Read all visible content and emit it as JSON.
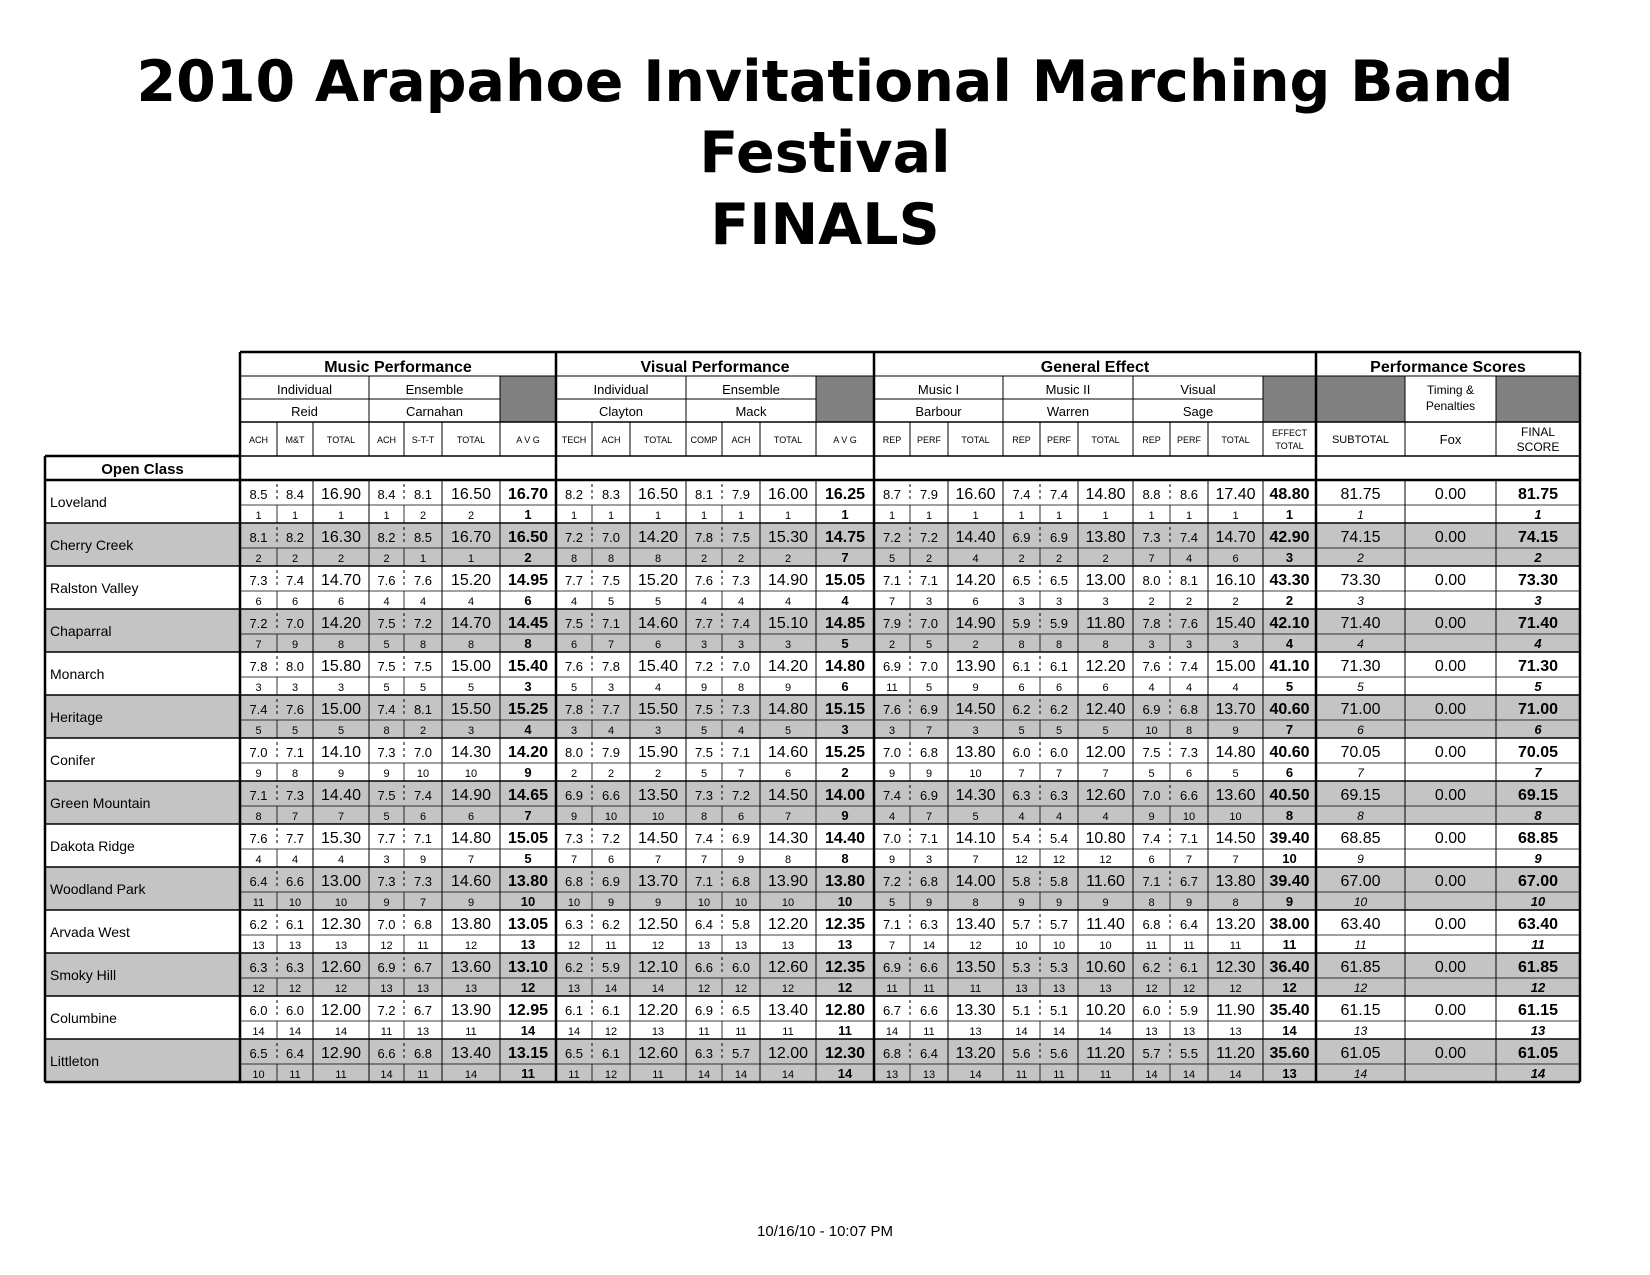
{
  "title": {
    "line1": "2010 Arapahoe Invitational Marching Band",
    "line2": "Festival",
    "line3": "FINALS"
  },
  "footer": "10/16/10 - 10:07 PM",
  "class_label": "Open Class",
  "sections": {
    "music": "Music Performance",
    "visual": "Visual Performance",
    "ge": "General Effect",
    "perf": "Performance Scores"
  },
  "captions": {
    "music_ind": "Individual",
    "music_ens": "Ensemble",
    "vis_ind": "Individual",
    "vis_ens": "Ensemble",
    "ge_music1": "Music I",
    "ge_music2": "Music II",
    "ge_visual": "Visual",
    "timing": [
      "Timing &",
      "Penalties"
    ]
  },
  "judges": {
    "music_ind": "Reid",
    "music_ens": "Carnahan",
    "vis_ind": "Clayton",
    "vis_ens": "Mack",
    "ge_music1": "Barbour",
    "ge_music2": "Warren",
    "ge_visual": "Sage",
    "timing": "Fox"
  },
  "columns": {
    "music": [
      "ACH",
      "M&T",
      "TOTAL",
      "ACH",
      "S-T-T",
      "TOTAL",
      "A V G"
    ],
    "visual": [
      "TECH",
      "ACH",
      "TOTAL",
      "COMP",
      "ACH",
      "TOTAL",
      "A V G"
    ],
    "ge": [
      "REP",
      "PERF",
      "TOTAL",
      "REP",
      "PERF",
      "TOTAL",
      "REP",
      "PERF",
      "TOTAL"
    ],
    "ge_total": [
      "EFFECT",
      "TOTAL"
    ],
    "subtotal": "SUBTOTAL",
    "final": [
      "FINAL",
      "SCORE"
    ]
  },
  "rows": [
    {
      "band": "Loveland",
      "scores": [
        "8.5",
        "8.4",
        "16.90",
        "8.4",
        "8.1",
        "16.50",
        "16.70",
        "8.2",
        "8.3",
        "16.50",
        "8.1",
        "7.9",
        "16.00",
        "16.25",
        "8.7",
        "7.9",
        "16.60",
        "7.4",
        "7.4",
        "14.80",
        "8.8",
        "8.6",
        "17.40",
        "48.80",
        "81.75",
        "0.00",
        "81.75"
      ],
      "ranks": [
        "1",
        "1",
        "1",
        "1",
        "2",
        "2",
        "1",
        "1",
        "1",
        "1",
        "1",
        "1",
        "1",
        "1",
        "1",
        "1",
        "1",
        "1",
        "1",
        "1",
        "1",
        "1",
        "1",
        "1",
        "1",
        "",
        "1"
      ]
    },
    {
      "band": "Cherry Creek",
      "scores": [
        "8.1",
        "8.2",
        "16.30",
        "8.2",
        "8.5",
        "16.70",
        "16.50",
        "7.2",
        "7.0",
        "14.20",
        "7.8",
        "7.5",
        "15.30",
        "14.75",
        "7.2",
        "7.2",
        "14.40",
        "6.9",
        "6.9",
        "13.80",
        "7.3",
        "7.4",
        "14.70",
        "42.90",
        "74.15",
        "0.00",
        "74.15"
      ],
      "ranks": [
        "2",
        "2",
        "2",
        "2",
        "1",
        "1",
        "2",
        "8",
        "8",
        "8",
        "2",
        "2",
        "2",
        "7",
        "5",
        "2",
        "4",
        "2",
        "2",
        "2",
        "7",
        "4",
        "6",
        "3",
        "2",
        "",
        "2"
      ]
    },
    {
      "band": "Ralston Valley",
      "scores": [
        "7.3",
        "7.4",
        "14.70",
        "7.6",
        "7.6",
        "15.20",
        "14.95",
        "7.7",
        "7.5",
        "15.20",
        "7.6",
        "7.3",
        "14.90",
        "15.05",
        "7.1",
        "7.1",
        "14.20",
        "6.5",
        "6.5",
        "13.00",
        "8.0",
        "8.1",
        "16.10",
        "43.30",
        "73.30",
        "0.00",
        "73.30"
      ],
      "ranks": [
        "6",
        "6",
        "6",
        "4",
        "4",
        "4",
        "6",
        "4",
        "5",
        "5",
        "4",
        "4",
        "4",
        "4",
        "7",
        "3",
        "6",
        "3",
        "3",
        "3",
        "2",
        "2",
        "2",
        "2",
        "3",
        "",
        "3"
      ]
    },
    {
      "band": "Chaparral",
      "scores": [
        "7.2",
        "7.0",
        "14.20",
        "7.5",
        "7.2",
        "14.70",
        "14.45",
        "7.5",
        "7.1",
        "14.60",
        "7.7",
        "7.4",
        "15.10",
        "14.85",
        "7.9",
        "7.0",
        "14.90",
        "5.9",
        "5.9",
        "11.80",
        "7.8",
        "7.6",
        "15.40",
        "42.10",
        "71.40",
        "0.00",
        "71.40"
      ],
      "ranks": [
        "7",
        "9",
        "8",
        "5",
        "8",
        "8",
        "8",
        "6",
        "7",
        "6",
        "3",
        "3",
        "3",
        "5",
        "2",
        "5",
        "2",
        "8",
        "8",
        "8",
        "3",
        "3",
        "3",
        "4",
        "4",
        "",
        "4"
      ]
    },
    {
      "band": "Monarch",
      "scores": [
        "7.8",
        "8.0",
        "15.80",
        "7.5",
        "7.5",
        "15.00",
        "15.40",
        "7.6",
        "7.8",
        "15.40",
        "7.2",
        "7.0",
        "14.20",
        "14.80",
        "6.9",
        "7.0",
        "13.90",
        "6.1",
        "6.1",
        "12.20",
        "7.6",
        "7.4",
        "15.00",
        "41.10",
        "71.30",
        "0.00",
        "71.30"
      ],
      "ranks": [
        "3",
        "3",
        "3",
        "5",
        "5",
        "5",
        "3",
        "5",
        "3",
        "4",
        "9",
        "8",
        "9",
        "6",
        "11",
        "5",
        "9",
        "6",
        "6",
        "6",
        "4",
        "4",
        "4",
        "5",
        "5",
        "",
        "5"
      ]
    },
    {
      "band": "Heritage",
      "scores": [
        "7.4",
        "7.6",
        "15.00",
        "7.4",
        "8.1",
        "15.50",
        "15.25",
        "7.8",
        "7.7",
        "15.50",
        "7.5",
        "7.3",
        "14.80",
        "15.15",
        "7.6",
        "6.9",
        "14.50",
        "6.2",
        "6.2",
        "12.40",
        "6.9",
        "6.8",
        "13.70",
        "40.60",
        "71.00",
        "0.00",
        "71.00"
      ],
      "ranks": [
        "5",
        "5",
        "5",
        "8",
        "2",
        "3",
        "4",
        "3",
        "4",
        "3",
        "5",
        "4",
        "5",
        "3",
        "3",
        "7",
        "3",
        "5",
        "5",
        "5",
        "10",
        "8",
        "9",
        "7",
        "6",
        "",
        "6"
      ]
    },
    {
      "band": "Conifer",
      "scores": [
        "7.0",
        "7.1",
        "14.10",
        "7.3",
        "7.0",
        "14.30",
        "14.20",
        "8.0",
        "7.9",
        "15.90",
        "7.5",
        "7.1",
        "14.60",
        "15.25",
        "7.0",
        "6.8",
        "13.80",
        "6.0",
        "6.0",
        "12.00",
        "7.5",
        "7.3",
        "14.80",
        "40.60",
        "70.05",
        "0.00",
        "70.05"
      ],
      "ranks": [
        "9",
        "8",
        "9",
        "9",
        "10",
        "10",
        "9",
        "2",
        "2",
        "2",
        "5",
        "7",
        "6",
        "2",
        "9",
        "9",
        "10",
        "7",
        "7",
        "7",
        "5",
        "6",
        "5",
        "6",
        "7",
        "",
        "7"
      ]
    },
    {
      "band": "Green Mountain",
      "scores": [
        "7.1",
        "7.3",
        "14.40",
        "7.5",
        "7.4",
        "14.90",
        "14.65",
        "6.9",
        "6.6",
        "13.50",
        "7.3",
        "7.2",
        "14.50",
        "14.00",
        "7.4",
        "6.9",
        "14.30",
        "6.3",
        "6.3",
        "12.60",
        "7.0",
        "6.6",
        "13.60",
        "40.50",
        "69.15",
        "0.00",
        "69.15"
      ],
      "ranks": [
        "8",
        "7",
        "7",
        "5",
        "6",
        "6",
        "7",
        "9",
        "10",
        "10",
        "8",
        "6",
        "7",
        "9",
        "4",
        "7",
        "5",
        "4",
        "4",
        "4",
        "9",
        "10",
        "10",
        "8",
        "8",
        "",
        "8"
      ]
    },
    {
      "band": "Dakota Ridge",
      "scores": [
        "7.6",
        "7.7",
        "15.30",
        "7.7",
        "7.1",
        "14.80",
        "15.05",
        "7.3",
        "7.2",
        "14.50",
        "7.4",
        "6.9",
        "14.30",
        "14.40",
        "7.0",
        "7.1",
        "14.10",
        "5.4",
        "5.4",
        "10.80",
        "7.4",
        "7.1",
        "14.50",
        "39.40",
        "68.85",
        "0.00",
        "68.85"
      ],
      "ranks": [
        "4",
        "4",
        "4",
        "3",
        "9",
        "7",
        "5",
        "7",
        "6",
        "7",
        "7",
        "9",
        "8",
        "8",
        "9",
        "3",
        "7",
        "12",
        "12",
        "12",
        "6",
        "7",
        "7",
        "10",
        "9",
        "",
        "9"
      ]
    },
    {
      "band": "Woodland Park",
      "scores": [
        "6.4",
        "6.6",
        "13.00",
        "7.3",
        "7.3",
        "14.60",
        "13.80",
        "6.8",
        "6.9",
        "13.70",
        "7.1",
        "6.8",
        "13.90",
        "13.80",
        "7.2",
        "6.8",
        "14.00",
        "5.8",
        "5.8",
        "11.60",
        "7.1",
        "6.7",
        "13.80",
        "39.40",
        "67.00",
        "0.00",
        "67.00"
      ],
      "ranks": [
        "11",
        "10",
        "10",
        "9",
        "7",
        "9",
        "10",
        "10",
        "9",
        "9",
        "10",
        "10",
        "10",
        "10",
        "5",
        "9",
        "8",
        "9",
        "9",
        "9",
        "8",
        "9",
        "8",
        "9",
        "10",
        "",
        "10"
      ]
    },
    {
      "band": "Arvada West",
      "scores": [
        "6.2",
        "6.1",
        "12.30",
        "7.0",
        "6.8",
        "13.80",
        "13.05",
        "6.3",
        "6.2",
        "12.50",
        "6.4",
        "5.8",
        "12.20",
        "12.35",
        "7.1",
        "6.3",
        "13.40",
        "5.7",
        "5.7",
        "11.40",
        "6.8",
        "6.4",
        "13.20",
        "38.00",
        "63.40",
        "0.00",
        "63.40"
      ],
      "ranks": [
        "13",
        "13",
        "13",
        "12",
        "11",
        "12",
        "13",
        "12",
        "11",
        "12",
        "13",
        "13",
        "13",
        "13",
        "7",
        "14",
        "12",
        "10",
        "10",
        "10",
        "11",
        "11",
        "11",
        "11",
        "11",
        "",
        "11"
      ]
    },
    {
      "band": "Smoky Hill",
      "scores": [
        "6.3",
        "6.3",
        "12.60",
        "6.9",
        "6.7",
        "13.60",
        "13.10",
        "6.2",
        "5.9",
        "12.10",
        "6.6",
        "6.0",
        "12.60",
        "12.35",
        "6.9",
        "6.6",
        "13.50",
        "5.3",
        "5.3",
        "10.60",
        "6.2",
        "6.1",
        "12.30",
        "36.40",
        "61.85",
        "0.00",
        "61.85"
      ],
      "ranks": [
        "12",
        "12",
        "12",
        "13",
        "13",
        "13",
        "12",
        "13",
        "14",
        "14",
        "12",
        "12",
        "12",
        "12",
        "11",
        "11",
        "11",
        "13",
        "13",
        "13",
        "12",
        "12",
        "12",
        "12",
        "12",
        "",
        "12"
      ]
    },
    {
      "band": "Columbine",
      "scores": [
        "6.0",
        "6.0",
        "12.00",
        "7.2",
        "6.7",
        "13.90",
        "12.95",
        "6.1",
        "6.1",
        "12.20",
        "6.9",
        "6.5",
        "13.40",
        "12.80",
        "6.7",
        "6.6",
        "13.30",
        "5.1",
        "5.1",
        "10.20",
        "6.0",
        "5.9",
        "11.90",
        "35.40",
        "61.15",
        "0.00",
        "61.15"
      ],
      "ranks": [
        "14",
        "14",
        "14",
        "11",
        "13",
        "11",
        "14",
        "14",
        "12",
        "13",
        "11",
        "11",
        "11",
        "11",
        "14",
        "11",
        "13",
        "14",
        "14",
        "14",
        "13",
        "13",
        "13",
        "14",
        "13",
        "",
        "13"
      ]
    },
    {
      "band": "Littleton",
      "scores": [
        "6.5",
        "6.4",
        "12.90",
        "6.6",
        "6.8",
        "13.40",
        "13.15",
        "6.5",
        "6.1",
        "12.60",
        "6.3",
        "5.7",
        "12.00",
        "12.30",
        "6.8",
        "6.4",
        "13.20",
        "5.6",
        "5.6",
        "11.20",
        "5.7",
        "5.5",
        "11.20",
        "35.60",
        "61.05",
        "0.00",
        "61.05"
      ],
      "ranks": [
        "10",
        "11",
        "11",
        "14",
        "11",
        "14",
        "11",
        "11",
        "12",
        "11",
        "14",
        "14",
        "14",
        "14",
        "13",
        "13",
        "14",
        "11",
        "11",
        "11",
        "14",
        "14",
        "14",
        "13",
        "14",
        "",
        "14"
      ]
    }
  ]
}
